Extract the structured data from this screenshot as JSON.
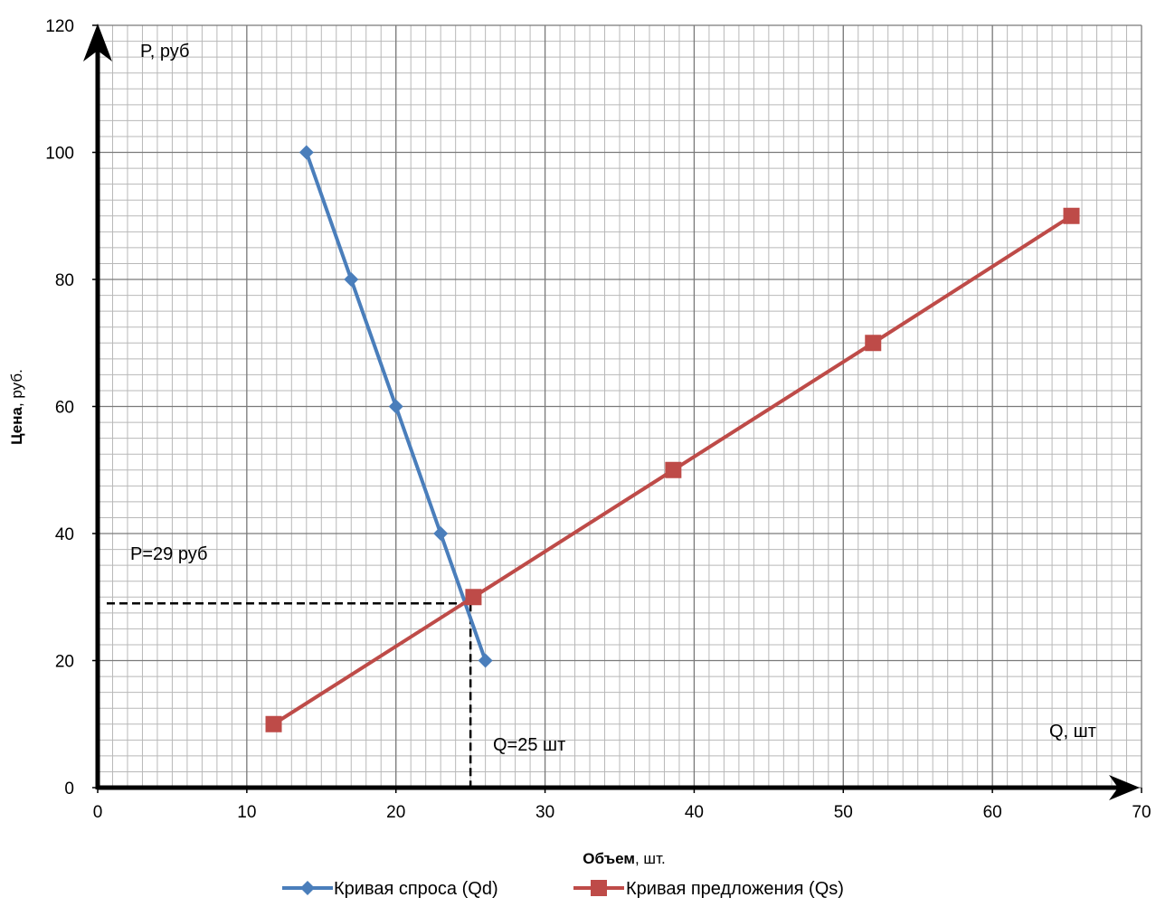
{
  "chart_data": {
    "type": "line",
    "xlabel": "Объем",
    "xlabel_suffix": ", шт.",
    "ylabel": "Цена",
    "ylabel_suffix": ", руб.",
    "xlim": [
      0,
      70
    ],
    "ylim": [
      0,
      120
    ],
    "x_ticks": [
      0,
      10,
      20,
      30,
      40,
      50,
      60,
      70
    ],
    "y_ticks": [
      0,
      20,
      40,
      60,
      80,
      100,
      120
    ],
    "grid": true,
    "minor_grid": true,
    "legend_position": "bottom",
    "series": [
      {
        "name": "Кривая спроса (Qd)",
        "color": "#4a7ebb",
        "marker": "diamond",
        "points": [
          [
            14,
            100
          ],
          [
            17,
            80
          ],
          [
            20,
            60
          ],
          [
            23,
            40
          ],
          [
            26,
            20
          ]
        ]
      },
      {
        "name": "Кривая предложения (Qs)",
        "color": "#be4b48",
        "marker": "square",
        "points": [
          [
            11.8,
            10
          ],
          [
            25.2,
            30
          ],
          [
            38.6,
            50
          ],
          [
            52,
            70
          ],
          [
            65.3,
            90
          ]
        ]
      }
    ],
    "equilibrium": {
      "q": 25,
      "p": 29
    },
    "annotations": {
      "y_axis_name": "P, руб",
      "x_axis_name": "Q, шт",
      "price_label": "P=29 руб",
      "qty_label": "Q=25 шт"
    }
  }
}
